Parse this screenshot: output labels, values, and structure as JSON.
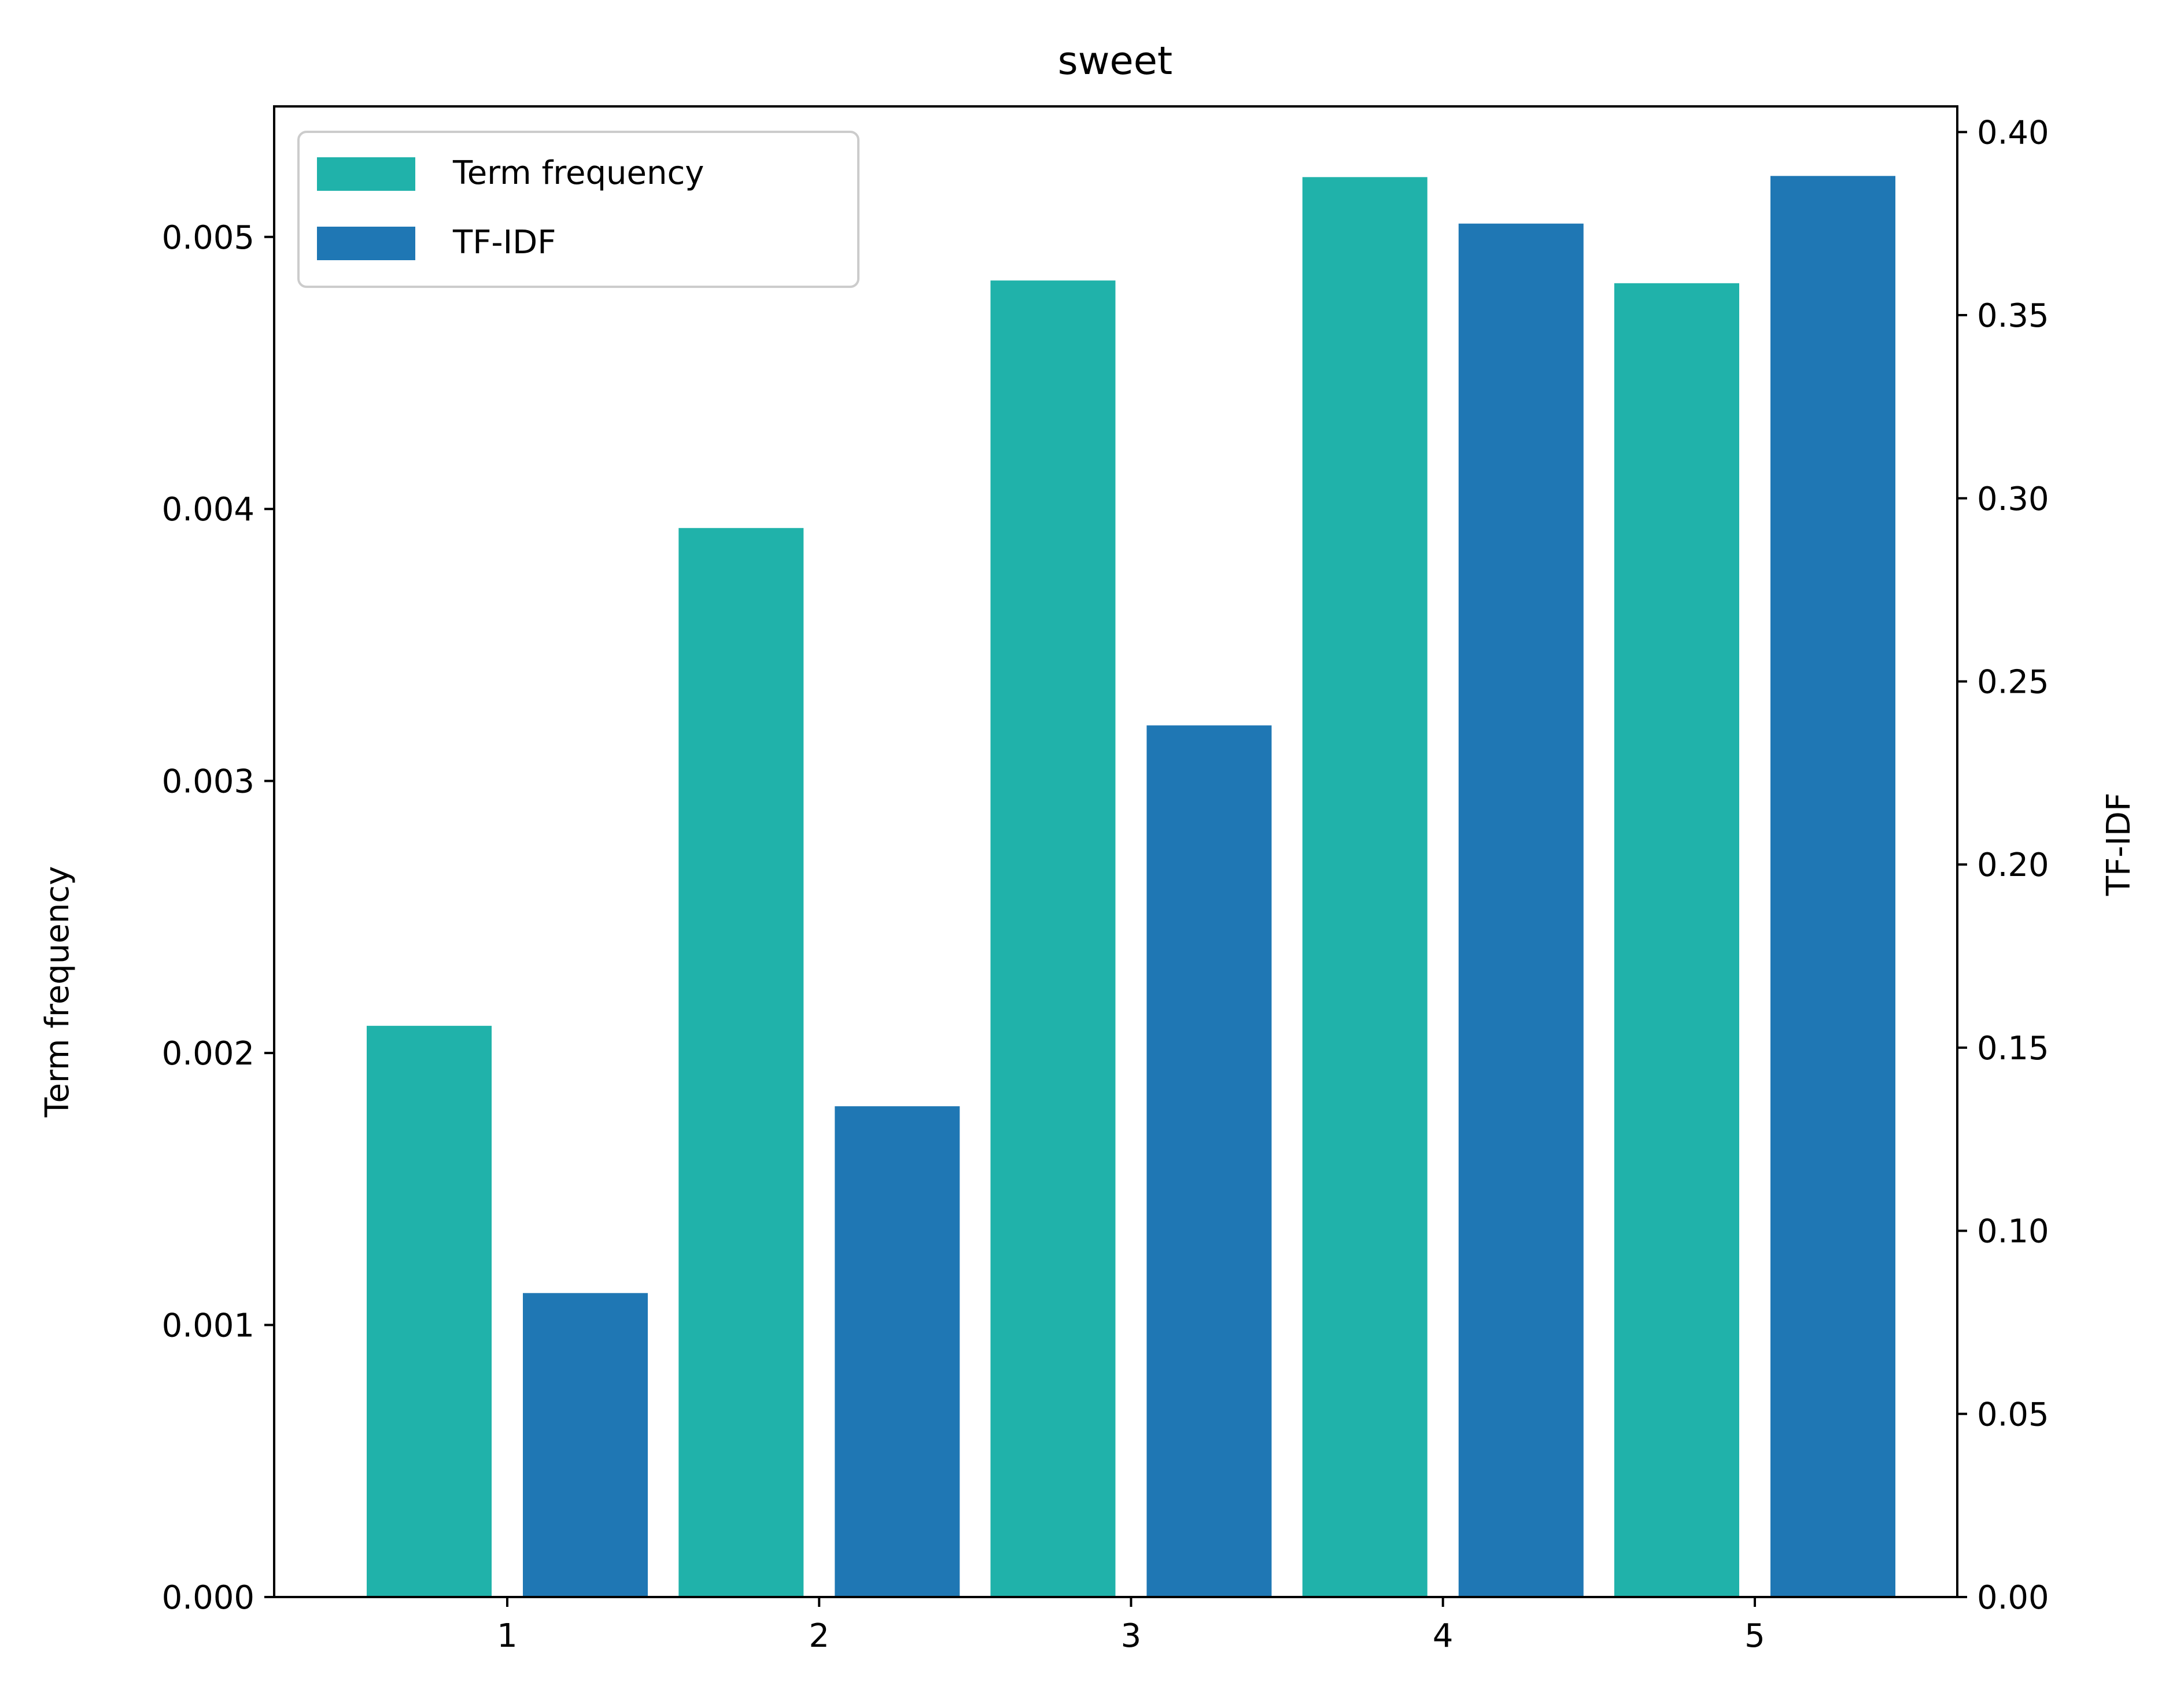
{
  "chart_data": {
    "type": "bar",
    "title": "sweet",
    "categories": [
      "1",
      "2",
      "3",
      "4",
      "5"
    ],
    "xlabel": "",
    "series": [
      {
        "name": "Term frequency",
        "axis": "left",
        "color": "#20b2aa",
        "values": [
          0.0021,
          0.00393,
          0.00484,
          0.00522,
          0.00483
        ]
      },
      {
        "name": "TF-IDF",
        "axis": "right",
        "color": "#1f77b4",
        "values": [
          0.083,
          0.134,
          0.238,
          0.375,
          0.388
        ]
      }
    ],
    "y_left": {
      "label": "Term frequency",
      "lim": [
        0,
        0.00548
      ],
      "ticks": [
        0,
        0.001,
        0.002,
        0.003,
        0.004,
        0.005
      ],
      "tick_labels": [
        "0.000",
        "0.001",
        "0.002",
        "0.003",
        "0.004",
        "0.005"
      ]
    },
    "y_right": {
      "label": "TF-IDF",
      "lim": [
        0,
        0.407
      ],
      "ticks": [
        0,
        0.05,
        0.1,
        0.15,
        0.2,
        0.25,
        0.3,
        0.35,
        0.4
      ],
      "tick_labels": [
        "0.00",
        "0.05",
        "0.10",
        "0.15",
        "0.20",
        "0.25",
        "0.30",
        "0.35",
        "0.40"
      ]
    },
    "x_tick_labels": [
      "1",
      "2",
      "3",
      "4",
      "5"
    ],
    "grid": false,
    "legend_position": "top-left"
  }
}
